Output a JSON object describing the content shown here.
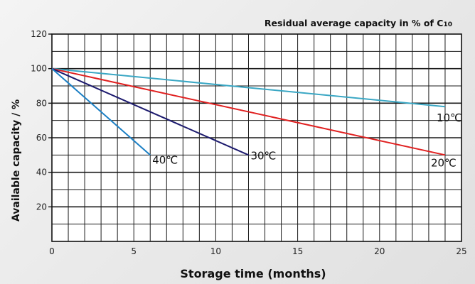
{
  "chart_data": {
    "type": "line",
    "title": "Residual average capacity in % of C10",
    "title_main": "Residual average capacity in % of C",
    "title_sub": "10",
    "xlabel": "Storage time (months)",
    "ylabel": "Available capacity / %",
    "xlim": [
      0,
      25
    ],
    "ylim": [
      0,
      120
    ],
    "x_ticks": [
      0,
      5,
      10,
      15,
      20,
      25
    ],
    "y_ticks": [
      20,
      40,
      60,
      80,
      100,
      120
    ],
    "grid": true,
    "series": [
      {
        "name": "10℃",
        "color": "#3aa7c4",
        "x": [
          0,
          24
        ],
        "y": [
          100,
          78
        ]
      },
      {
        "name": "20℃",
        "color": "#e02020",
        "x": [
          0,
          24
        ],
        "y": [
          100,
          50
        ]
      },
      {
        "name": "30℃",
        "color": "#1c1a6e",
        "x": [
          0,
          12
        ],
        "y": [
          100,
          50
        ]
      },
      {
        "name": "40℃",
        "color": "#1b7fc4",
        "x": [
          0,
          6
        ],
        "y": [
          100,
          50
        ]
      }
    ]
  }
}
